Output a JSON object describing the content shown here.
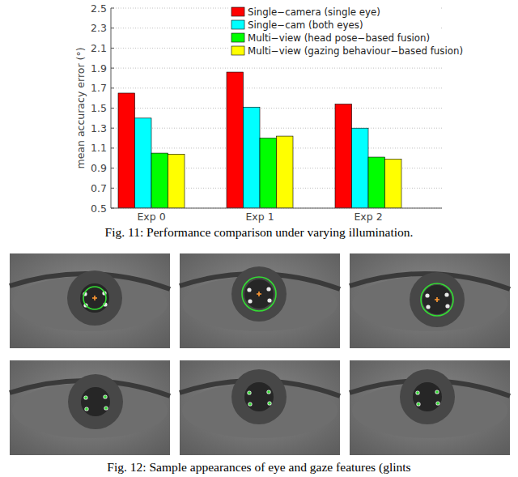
{
  "chart_data": {
    "type": "bar",
    "y_label": "mean accuracy error (°)",
    "categories": [
      "Exp 0",
      "Exp 1",
      "Exp 2"
    ],
    "series": [
      {
        "name": "Single−camera (single eye)",
        "color": "#ff0000",
        "values": [
          1.65,
          1.86,
          1.54
        ]
      },
      {
        "name": "Single−cam (both eyes)",
        "color": "#00ffff",
        "values": [
          1.4,
          1.51,
          1.3
        ]
      },
      {
        "name": "Multi−view (head pose−based fusion)",
        "color": "#00ff00",
        "values": [
          1.05,
          1.2,
          1.01
        ]
      },
      {
        "name": "Multi−view (gazing behaviour−based fusion)",
        "color": "#ffff00",
        "values": [
          1.04,
          1.22,
          0.99
        ]
      }
    ],
    "ylim": [
      0.5,
      2.5
    ],
    "yticks": [
      0.5,
      0.7,
      0.9,
      1.1,
      1.3,
      1.5,
      1.7,
      1.9,
      2.1,
      2.3,
      2.5
    ],
    "grid": true,
    "legend": "upper right"
  },
  "captions": [
    "Fig. 11: Performance comparison under varying illumination.",
    "Fig. 12: Sample appearances of eye and gaze features (glints"
  ]
}
